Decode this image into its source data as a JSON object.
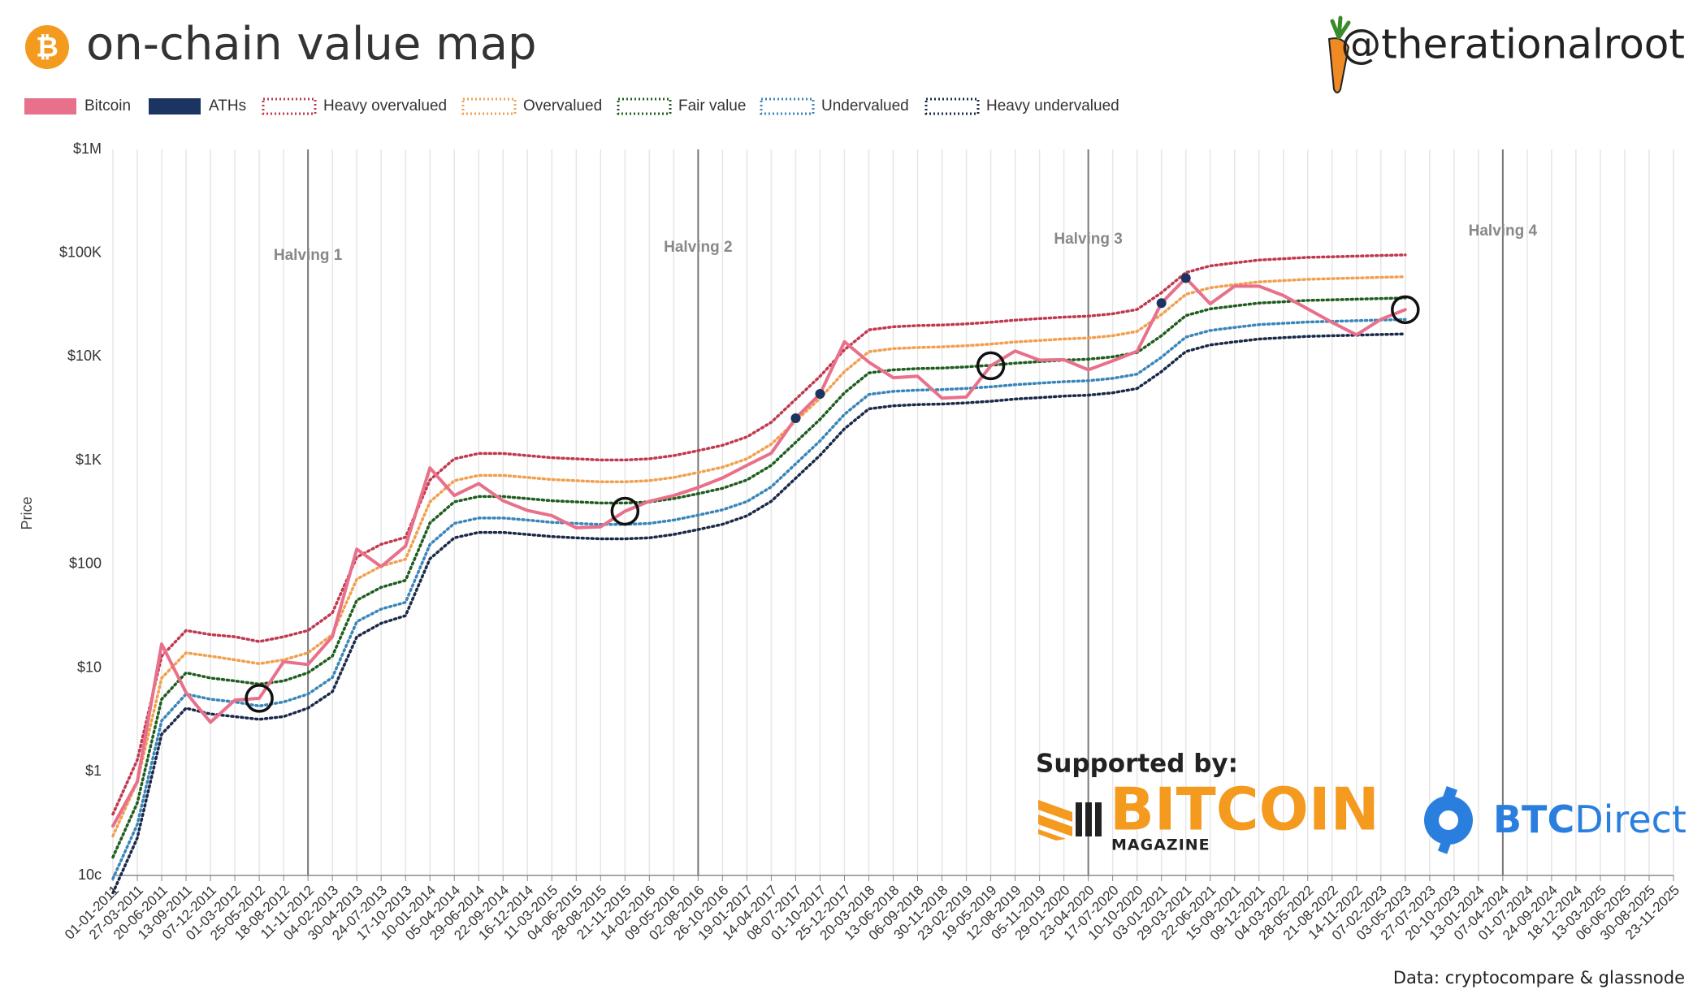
{
  "chart_data": {
    "type": "line",
    "title": "on-chain value map",
    "credit": "@therationalroot",
    "source": "Data: cryptocompare & glassnode",
    "sponsor_heading": "Supported by:",
    "sponsors": [
      {
        "name": "BITCOIN",
        "sub": "MAGAZINE"
      },
      {
        "name": "BTC",
        "sub": "Direct"
      }
    ],
    "y_label": "Price",
    "log_scale": true,
    "grid": true,
    "ylim": [
      0.1,
      1000000
    ],
    "yticks": [
      {
        "value": 0.1,
        "label": "10c"
      },
      {
        "value": 1,
        "label": "$1"
      },
      {
        "value": 10,
        "label": "$10"
      },
      {
        "value": 100,
        "label": "$100"
      },
      {
        "value": 1000,
        "label": "$1K"
      },
      {
        "value": 10000,
        "label": "$10K"
      },
      {
        "value": 100000,
        "label": "$100K"
      },
      {
        "value": 1000000,
        "label": "$1M"
      }
    ],
    "categories": [
      "01-01-2011",
      "27-03-2011",
      "20-06-2011",
      "13-09-2011",
      "07-12-2011",
      "01-03-2012",
      "25-05-2012",
      "18-08-2012",
      "11-11-2012",
      "04-02-2013",
      "30-04-2013",
      "24-07-2013",
      "17-10-2013",
      "10-01-2014",
      "05-04-2014",
      "29-06-2014",
      "22-09-2014",
      "16-12-2014",
      "11-03-2015",
      "04-06-2015",
      "28-08-2015",
      "21-11-2015",
      "14-02-2016",
      "09-05-2016",
      "02-08-2016",
      "26-10-2016",
      "19-01-2017",
      "14-04-2017",
      "08-07-2017",
      "01-10-2017",
      "25-12-2017",
      "20-03-2018",
      "13-06-2018",
      "06-09-2018",
      "30-11-2018",
      "23-02-2019",
      "19-05-2019",
      "12-08-2019",
      "05-11-2019",
      "29-01-2020",
      "23-04-2020",
      "17-07-2020",
      "10-10-2020",
      "03-01-2021",
      "29-03-2021",
      "22-06-2021",
      "15-09-2021",
      "09-12-2021",
      "04-03-2022",
      "28-05-2022",
      "21-08-2022",
      "14-11-2022",
      "07-02-2023",
      "03-05-2023",
      "27-07-2023",
      "20-10-2023",
      "13-01-2024",
      "07-04-2024",
      "01-07-2024",
      "24-09-2024",
      "18-12-2024",
      "13-03-2025",
      "06-06-2025",
      "30-08-2025",
      "23-11-2025"
    ],
    "series": [
      {
        "name": "Heavy overvalued",
        "color": "#c0394f",
        "style": "dotted",
        "values": [
          0.39,
          1.3,
          13,
          23,
          21,
          20,
          18,
          20,
          23,
          34,
          117,
          156,
          182,
          650,
          1040,
          1170,
          1170,
          1118,
          1066,
          1040,
          1014,
          1014,
          1040,
          1118,
          1248,
          1404,
          1690,
          2340,
          3900,
          6500,
          11700,
          18200,
          19500,
          20020,
          20280,
          20800,
          21580,
          22620,
          23400,
          24180,
          24700,
          26000,
          28600,
          41600,
          65000,
          75400,
          80600,
          85800,
          88400,
          91000,
          92300,
          93600,
          94900,
          96200,
          null,
          null,
          null,
          null,
          null,
          null,
          null,
          null,
          null,
          null,
          null
        ]
      },
      {
        "name": "Overvalued",
        "color": "#f0a050",
        "style": "dotted",
        "values": [
          0.24,
          0.8,
          8,
          14,
          13,
          12,
          11,
          12,
          14,
          21,
          72,
          96,
          112,
          400,
          640,
          720,
          720,
          688,
          656,
          640,
          624,
          624,
          640,
          688,
          768,
          864,
          1040,
          1440,
          2400,
          4000,
          7200,
          11200,
          12000,
          12320,
          12480,
          12800,
          13280,
          13920,
          14400,
          14880,
          15200,
          16000,
          17600,
          25600,
          40000,
          46400,
          49600,
          52800,
          54400,
          56000,
          56800,
          57600,
          58400,
          59200,
          null,
          null,
          null,
          null,
          null,
          null,
          null,
          null,
          null,
          null,
          null
        ]
      },
      {
        "name": "Fair value",
        "color": "#1f5e1f",
        "style": "dotted",
        "values": [
          0.15,
          0.5,
          5,
          9,
          8,
          7.5,
          7,
          7.5,
          9,
          13,
          45,
          60,
          70,
          250,
          400,
          450,
          450,
          430,
          410,
          400,
          390,
          390,
          400,
          430,
          480,
          540,
          650,
          900,
          1500,
          2500,
          4500,
          7000,
          7500,
          7700,
          7800,
          8000,
          8300,
          8700,
          9000,
          9300,
          9500,
          10000,
          11000,
          16000,
          25000,
          29000,
          31000,
          33000,
          34000,
          35000,
          35500,
          36000,
          36500,
          37000,
          null,
          null,
          null,
          null,
          null,
          null,
          null,
          null,
          null,
          null,
          null
        ]
      },
      {
        "name": "Undervalued",
        "color": "#3a86b8",
        "style": "dotted",
        "values": [
          0.093,
          0.31,
          3.1,
          5.6,
          5,
          4.7,
          4.3,
          4.7,
          5.6,
          8.1,
          28,
          37,
          43,
          155,
          248,
          279,
          279,
          267,
          254,
          248,
          242,
          242,
          248,
          267,
          298,
          335,
          403,
          558,
          930,
          1550,
          2790,
          4340,
          4650,
          4774,
          4836,
          4960,
          5146,
          5394,
          5580,
          5766,
          5890,
          6200,
          6820,
          9920,
          15500,
          17980,
          19220,
          20460,
          21080,
          21700,
          22010,
          22320,
          22630,
          22940,
          null,
          null,
          null,
          null,
          null,
          null,
          null,
          null,
          null,
          null,
          null
        ]
      },
      {
        "name": "Heavy undervalued",
        "color": "#1b2a4a",
        "style": "dotted",
        "values": [
          0.068,
          0.23,
          2.3,
          4.1,
          3.6,
          3.4,
          3.2,
          3.4,
          4.1,
          5.9,
          20,
          27,
          32,
          113,
          180,
          203,
          203,
          194,
          185,
          180,
          176,
          176,
          180,
          194,
          216,
          243,
          293,
          405,
          675,
          1125,
          2025,
          3150,
          3375,
          3465,
          3510,
          3600,
          3735,
          3915,
          4050,
          4185,
          4275,
          4500,
          4950,
          7200,
          11250,
          13050,
          13950,
          14850,
          15300,
          15750,
          15975,
          16200,
          16425,
          16650,
          null,
          null,
          null,
          null,
          null,
          null,
          null,
          null,
          null,
          null,
          null
        ]
      },
      {
        "name": "Bitcoin",
        "color": "#e8708a",
        "style": "solid",
        "values": [
          0.3,
          0.8,
          17,
          5.8,
          3,
          4.9,
          5.1,
          11.5,
          10.8,
          20,
          140,
          95,
          150,
          850,
          460,
          600,
          410,
          330,
          295,
          225,
          230,
          325,
          405,
          460,
          550,
          680,
          900,
          1180,
          2560,
          4400,
          14000,
          8900,
          6300,
          6500,
          4000,
          4100,
          8200,
          11400,
          9300,
          9400,
          7500,
          9150,
          11300,
          33000,
          57500,
          32500,
          48000,
          48000,
          39000,
          29000,
          21500,
          16300,
          23000,
          28500,
          null,
          null,
          null,
          null,
          null,
          null,
          null,
          null,
          null,
          null,
          null
        ]
      },
      {
        "name": "ATHs",
        "color": "#1b3461",
        "style": "dots",
        "values": [
          null,
          null,
          null,
          null,
          null,
          null,
          null,
          null,
          null,
          null,
          null,
          null,
          null,
          null,
          null,
          null,
          null,
          null,
          null,
          null,
          null,
          null,
          null,
          null,
          null,
          null,
          null,
          null,
          2560,
          4400,
          null,
          null,
          null,
          null,
          null,
          null,
          null,
          null,
          null,
          null,
          null,
          null,
          null,
          33000,
          57500,
          null,
          null,
          null,
          null,
          null,
          null,
          null,
          null,
          null,
          null,
          null,
          null,
          null,
          null,
          null,
          null,
          null,
          null,
          null,
          null
        ]
      }
    ],
    "legend_order": [
      5,
      6,
      0,
      1,
      2,
      3,
      4
    ],
    "annotations": [
      {
        "text": "Halving 1",
        "x": "11-11-2012"
      },
      {
        "text": "Halving 2",
        "x": "02-08-2016"
      },
      {
        "text": "Halving 3",
        "x": "23-04-2020"
      },
      {
        "text": "Halving 4",
        "x": "07-04-2024"
      }
    ]
  }
}
